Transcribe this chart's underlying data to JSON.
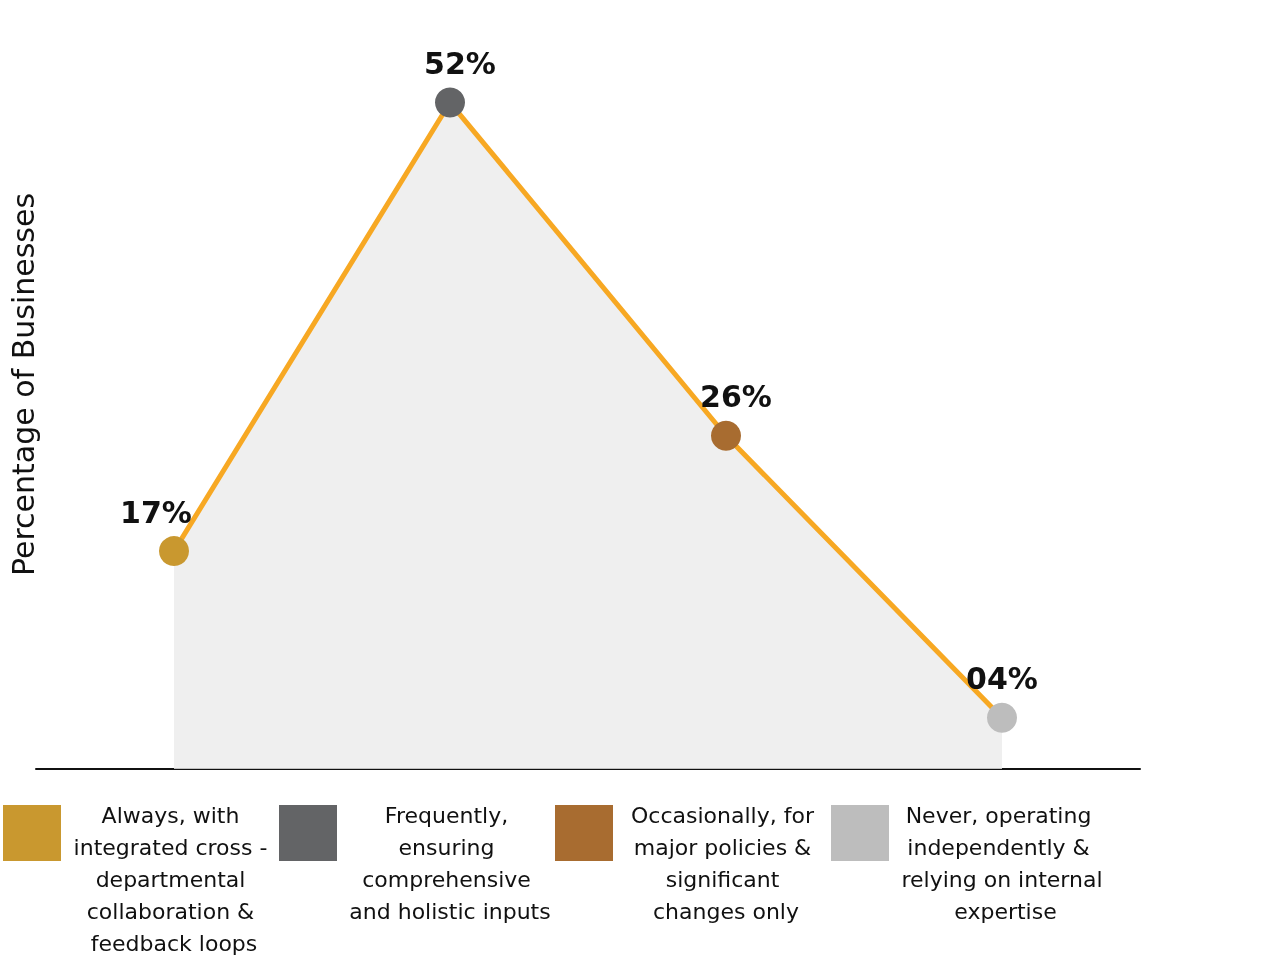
{
  "chart_data": {
    "type": "area",
    "ylabel": "Percentage of Businesses",
    "categories": [
      "Always, with integrated cross - departmental collaboration & feedback loops",
      "Frequently, ensuring comprehensive and holistic inputs",
      "Occasionally, for major policies & significant changes only",
      "Never, operating independently & relying on internal expertise"
    ],
    "series": [
      {
        "color": "#f7a823",
        "values": [
          17,
          52,
          26,
          4
        ],
        "colors": [
          "#c9982f",
          "#636466",
          "#a86c30",
          "#bdbdbd"
        ],
        "value_labels": [
          "17%",
          "52%",
          "26%",
          "04%"
        ]
      }
    ],
    "tick_labels": "x",
    "marker": "circle",
    "line_style": "solid",
    "grid": false
  }
}
